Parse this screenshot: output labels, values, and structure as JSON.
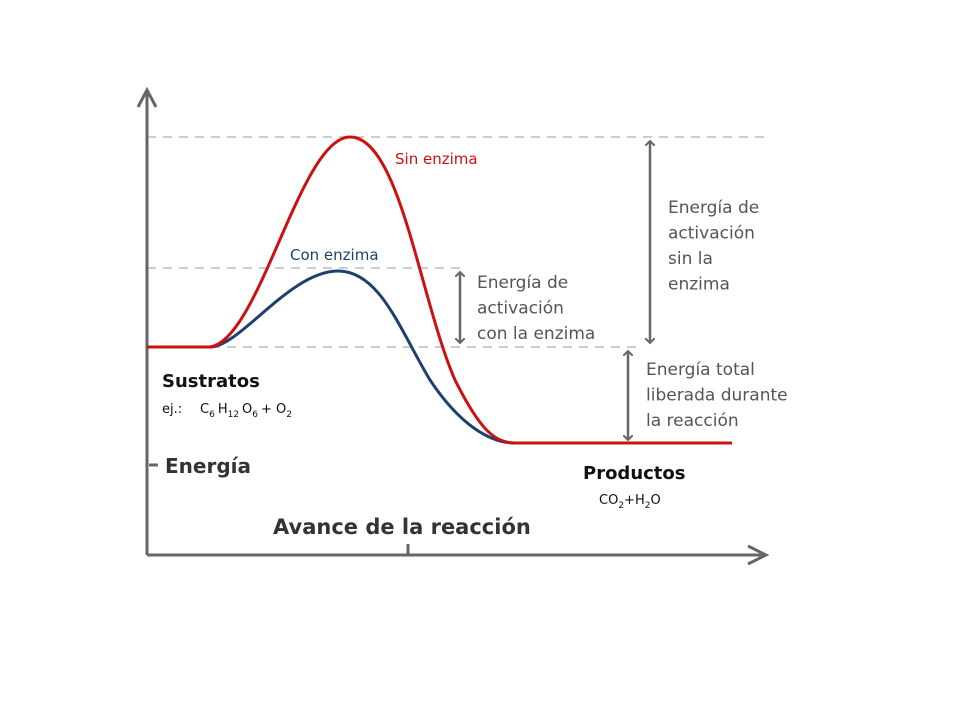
{
  "labels": {
    "without_enzyme": "Sin enzima",
    "with_enzyme": "Con enzima",
    "activation_without": [
      "Energía de",
      "activación",
      "sin la",
      "enzima"
    ],
    "activation_with": [
      "Energía de",
      "activación",
      "con la enzima"
    ],
    "total_released": [
      "Energía total",
      "liberada durante",
      "la reacción"
    ],
    "substrates": "Sustratos",
    "example_prefix": "ej.:",
    "reactants": [
      {
        "base": "C",
        "sub": "6"
      },
      {
        "base": "H",
        "sub": "12"
      },
      {
        "base": "O",
        "sub": "6"
      },
      {
        "base": "+ O",
        "sub": "2"
      }
    ],
    "products": "Productos",
    "product_formula": [
      {
        "base": "CO",
        "sub": "2"
      },
      {
        "base": "+H",
        "sub": "2"
      },
      {
        "base": "O"
      }
    ],
    "y_axis": "Energía",
    "x_axis": "Avance de la reacción"
  }
}
